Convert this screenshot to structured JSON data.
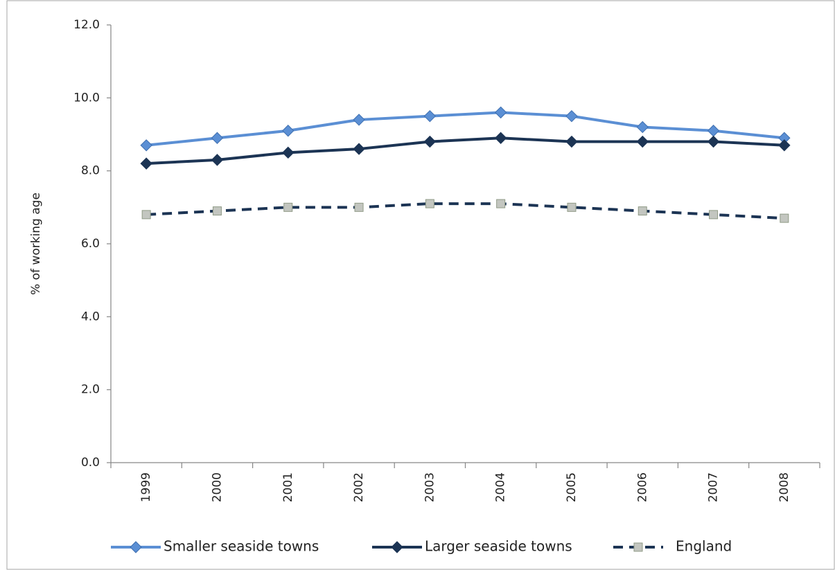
{
  "chart_data": {
    "type": "line",
    "y_axis_label": "% of working age",
    "categories": [
      "1999",
      "2000",
      "2001",
      "2002",
      "2003",
      "2004",
      "2005",
      "2006",
      "2007",
      "2008"
    ],
    "series": [
      {
        "name": "Smaller seaside towns",
        "color": "#5b8fd4",
        "marker": "diamond",
        "line_style": "solid",
        "values": [
          8.7,
          8.9,
          9.1,
          9.4,
          9.5,
          9.6,
          9.5,
          9.2,
          9.1,
          8.9
        ]
      },
      {
        "name": "Larger seaside towns",
        "color": "#1c3454",
        "marker": "diamond",
        "line_style": "solid",
        "values": [
          8.2,
          8.3,
          8.5,
          8.6,
          8.8,
          8.9,
          8.8,
          8.8,
          8.8,
          8.7
        ]
      },
      {
        "name": "England",
        "color": "#1c3454",
        "marker": "square",
        "line_style": "dashed",
        "values": [
          6.8,
          6.9,
          7.0,
          7.0,
          7.1,
          7.1,
          7.0,
          6.9,
          6.8,
          6.7
        ]
      }
    ],
    "ylim": [
      0,
      12
    ],
    "yticks": [
      {
        "value": 0,
        "label": "0.0"
      },
      {
        "value": 2,
        "label": "2.0"
      },
      {
        "value": 4,
        "label": "4.0"
      },
      {
        "value": 6,
        "label": "6.0"
      },
      {
        "value": 8,
        "label": "8.0"
      },
      {
        "value": 10,
        "label": "10.0"
      },
      {
        "value": 12,
        "label": "12.0"
      }
    ],
    "grid": false,
    "legend": "bottom"
  }
}
